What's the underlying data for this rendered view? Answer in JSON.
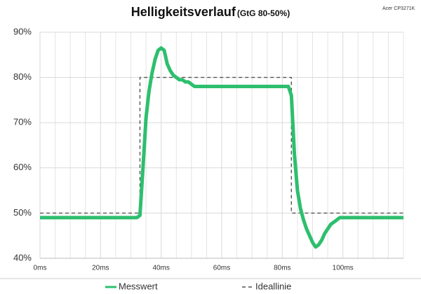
{
  "chart_data": {
    "type": "line",
    "title": "Helligkeitsverlauf",
    "subtitle": "(GtG 80-50%)",
    "note": "Acer CP3271K",
    "xlim": [
      0,
      120
    ],
    "ylim": [
      40,
      90
    ],
    "xticks": [
      {
        "value": 0,
        "label": "0ms"
      },
      {
        "value": 20,
        "label": "20ms"
      },
      {
        "value": 40,
        "label": "40ms"
      },
      {
        "value": 60,
        "label": "60ms"
      },
      {
        "value": 80,
        "label": "80ms"
      },
      {
        "value": 100,
        "label": "100ms"
      }
    ],
    "x_minor_ticks": [
      5,
      10,
      15,
      25,
      30,
      35,
      45,
      50,
      55,
      65,
      70,
      75,
      85,
      90,
      95,
      105,
      110,
      115,
      120
    ],
    "yticks": [
      {
        "value": 40,
        "label": "40%"
      },
      {
        "value": 50,
        "label": "50%"
      },
      {
        "value": 60,
        "label": "60%"
      },
      {
        "value": 70,
        "label": "70%"
      },
      {
        "value": 80,
        "label": "80%"
      },
      {
        "value": 90,
        "label": "90%"
      }
    ],
    "grid": true,
    "legend": "bottom",
    "series": [
      {
        "name": "Messwert",
        "color": "#2dbf6e",
        "dash": false,
        "x": [
          0,
          1,
          2,
          3,
          4,
          5,
          6,
          7,
          8,
          9,
          10,
          11,
          12,
          13,
          14,
          15,
          16,
          17,
          18,
          19,
          20,
          21,
          22,
          23,
          24,
          25,
          26,
          27,
          28,
          29,
          30,
          31,
          32,
          33,
          34,
          35,
          36,
          37,
          38,
          39,
          40,
          41,
          42,
          43,
          44,
          45,
          46,
          47,
          48,
          49,
          50,
          51,
          52,
          53,
          54,
          55,
          56,
          57,
          58,
          59,
          60,
          61,
          62,
          63,
          64,
          65,
          66,
          67,
          68,
          69,
          70,
          71,
          72,
          73,
          74,
          75,
          76,
          77,
          78,
          79,
          80,
          81,
          82,
          83,
          84,
          85,
          86,
          87,
          88,
          89,
          90,
          91,
          92,
          93,
          94,
          95,
          96,
          97,
          98,
          99,
          100,
          101,
          102,
          103,
          104,
          105,
          106,
          107,
          108,
          109,
          110,
          111,
          112,
          113,
          114,
          115,
          116,
          117,
          118,
          119,
          120
        ],
        "values": [
          49,
          49,
          49,
          49,
          49,
          49,
          49,
          49,
          49,
          49,
          49,
          49,
          49,
          49,
          49,
          49,
          49,
          49,
          49,
          49,
          49,
          49,
          49,
          49,
          49,
          49,
          49,
          49,
          49,
          49,
          49,
          49,
          49,
          49.5,
          60,
          71,
          77,
          81,
          84,
          86,
          86.5,
          86,
          83,
          81.5,
          80.5,
          80,
          79.5,
          79.5,
          79,
          79,
          78.5,
          78,
          78,
          78,
          78,
          78,
          78,
          78,
          78,
          78,
          78,
          78,
          78,
          78,
          78,
          78,
          78,
          78,
          78,
          78,
          78,
          78,
          78,
          78,
          78,
          78,
          78,
          78,
          78,
          78,
          78,
          78,
          78,
          76,
          63,
          55,
          51,
          48.5,
          46.5,
          45,
          43.5,
          42.5,
          43,
          44,
          45.5,
          46.5,
          47.5,
          48,
          48.5,
          49,
          49,
          49,
          49,
          49,
          49,
          49,
          49,
          49,
          49,
          49,
          49,
          49,
          49,
          49,
          49,
          49,
          49,
          49,
          49,
          49,
          49
        ]
      },
      {
        "name": "Ideallinie",
        "color": "#555555",
        "dash": true,
        "x": [
          0,
          33,
          33,
          83,
          83,
          120
        ],
        "values": [
          50,
          50,
          80,
          80,
          50,
          50
        ]
      }
    ]
  }
}
